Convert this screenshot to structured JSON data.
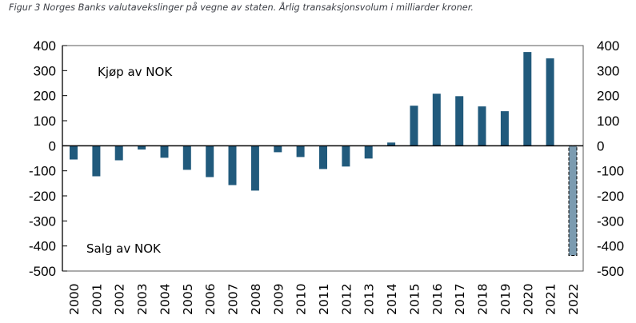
{
  "caption": "Figur 3 Norges Banks valutavekslinger på vegne av staten. Årlig transaksjonsvolum i milliarder kroner.",
  "colors": {
    "bar": "#215a7c",
    "bar_estimate": "#7b9bb0",
    "axis": "#000000",
    "frame": "#595959"
  },
  "chart_data": {
    "type": "bar",
    "title": "Figur 3 Norges Banks valutavekslinger på vegne av staten. Årlig transaksjonsvolum i milliarder kroner.",
    "xlabel": "",
    "ylabel": "",
    "ylim": [
      -500,
      400
    ],
    "yticks": [
      400,
      300,
      200,
      100,
      0,
      -100,
      -200,
      -300,
      -400,
      -500
    ],
    "ytick_labels": [
      "400",
      "300",
      "200",
      "100",
      "0",
      "-100",
      "-200",
      "-300",
      "-400",
      "-500"
    ],
    "secondary_ytick_labels": [
      "400",
      "300",
      "200",
      "100",
      "0",
      "-100",
      "-200",
      "-300",
      "-400",
      "-500"
    ],
    "categories": [
      "2000",
      "2001",
      "2002",
      "2003",
      "2004",
      "2005",
      "2006",
      "2007",
      "2008",
      "2009",
      "2010",
      "2011",
      "2012",
      "2013",
      "2014",
      "2015",
      "2016",
      "2017",
      "2018",
      "2019",
      "2020",
      "2021",
      "2022"
    ],
    "values": [
      -55,
      -122,
      -58,
      -15,
      -48,
      -96,
      -125,
      -157,
      -179,
      -26,
      -45,
      -93,
      -83,
      -51,
      13,
      160,
      208,
      198,
      157,
      138,
      374,
      349,
      -438
    ],
    "estimate_categories": [
      "2022"
    ],
    "annotations": [
      "Kjøp av NOK",
      "Salg av NOK"
    ],
    "grid": false,
    "legend": "none"
  }
}
